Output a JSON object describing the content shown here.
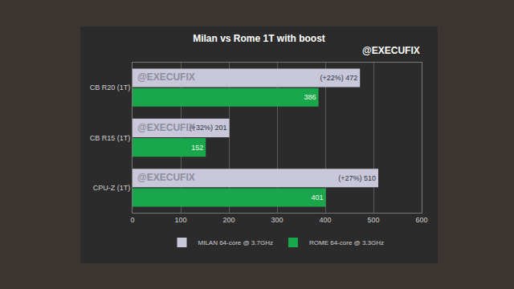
{
  "chart_data": {
    "type": "bar",
    "title": "Milan vs Rome 1T with boost",
    "annotation": "@EXECUFIX",
    "orientation": "horizontal",
    "categories": [
      "CB R20 (1T)",
      "CB R15 (1T)",
      "CPU-Z (1T)"
    ],
    "series": [
      {
        "name": "MILAN 64-core @ 3.7GHz",
        "color": "#c8c8da",
        "values": [
          472,
          201,
          510
        ],
        "value_labels": [
          "(+22%) 472",
          "(+32%) 201",
          "(+27%) 510"
        ]
      },
      {
        "name": "ROME 64-core @ 3.3GHz",
        "color": "#1aa64a",
        "values": [
          386,
          152,
          401
        ]
      }
    ],
    "xlim": [
      0,
      600
    ],
    "xticks": [
      0,
      100,
      200,
      300,
      400,
      500,
      600
    ],
    "grid": true,
    "data_labels": true,
    "legend": "bottom"
  }
}
